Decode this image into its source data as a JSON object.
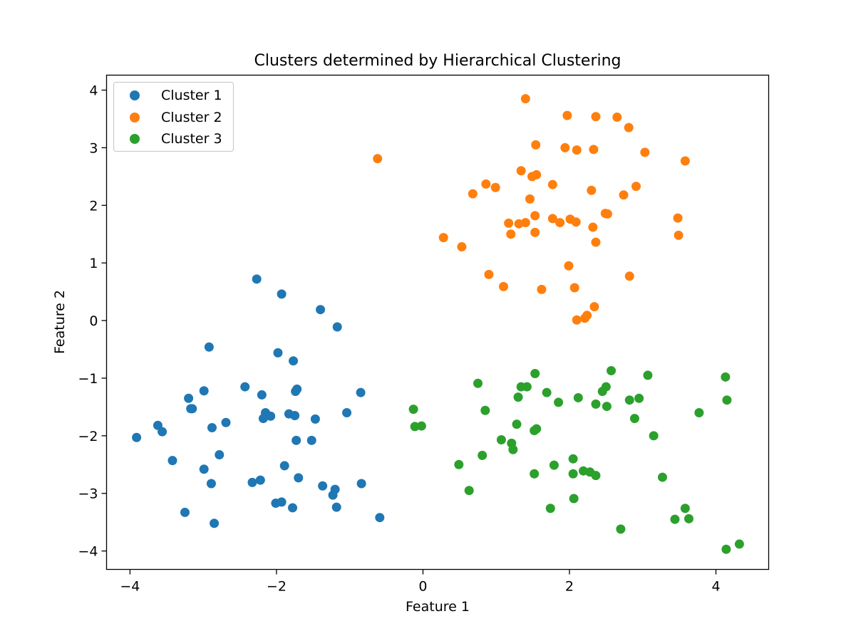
{
  "chart_data": {
    "type": "scatter",
    "title": "Clusters determined by Hierarchical Clustering",
    "xlabel": "Feature 1",
    "ylabel": "Feature 2",
    "xlim": [
      -4.32,
      4.72
    ],
    "ylim": [
      -4.32,
      4.26
    ],
    "xticks": [
      -4,
      -2,
      0,
      2,
      4
    ],
    "xtick_labels": [
      "−4",
      "−2",
      "0",
      "2",
      "4"
    ],
    "yticks": [
      -4,
      -3,
      -2,
      -1,
      0,
      1,
      2,
      3,
      4
    ],
    "ytick_labels": [
      "−4",
      "−3",
      "−2",
      "−1",
      "0",
      "1",
      "2",
      "3",
      "4"
    ],
    "grid": false,
    "legend_position": "top-left",
    "series": [
      {
        "name": "Cluster 1",
        "color": "#1f77b4",
        "points": [
          [
            -2.27,
            0.72
          ],
          [
            -1.93,
            0.46
          ],
          [
            -1.4,
            0.19
          ],
          [
            -1.17,
            -0.11
          ],
          [
            -2.92,
            -0.46
          ],
          [
            -1.98,
            -0.56
          ],
          [
            -1.77,
            -0.7
          ],
          [
            -2.43,
            -1.15
          ],
          [
            -3.2,
            -1.35
          ],
          [
            -2.99,
            -1.22
          ],
          [
            -2.2,
            -1.29
          ],
          [
            -1.72,
            -1.19
          ],
          [
            -1.74,
            -1.23
          ],
          [
            -0.85,
            -1.25
          ],
          [
            -3.15,
            -1.53
          ],
          [
            -3.17,
            -1.53
          ],
          [
            -2.15,
            -1.6
          ],
          [
            -2.08,
            -1.66
          ],
          [
            -1.83,
            -1.62
          ],
          [
            -1.75,
            -1.65
          ],
          [
            -2.18,
            -1.7
          ],
          [
            -1.47,
            -1.71
          ],
          [
            -1.04,
            -1.6
          ],
          [
            -2.69,
            -1.77
          ],
          [
            -2.88,
            -1.86
          ],
          [
            -3.62,
            -1.82
          ],
          [
            -3.56,
            -1.93
          ],
          [
            -3.91,
            -2.03
          ],
          [
            -1.73,
            -2.08
          ],
          [
            -1.52,
            -2.08
          ],
          [
            -3.42,
            -2.43
          ],
          [
            -2.78,
            -2.33
          ],
          [
            -2.99,
            -2.58
          ],
          [
            -1.89,
            -2.52
          ],
          [
            -1.7,
            -2.73
          ],
          [
            -2.22,
            -2.77
          ],
          [
            -2.33,
            -2.81
          ],
          [
            -2.89,
            -2.83
          ],
          [
            -1.37,
            -2.87
          ],
          [
            -1.2,
            -2.93
          ],
          [
            -1.23,
            -3.03
          ],
          [
            -0.84,
            -2.83
          ],
          [
            -2.01,
            -3.17
          ],
          [
            -1.93,
            -3.15
          ],
          [
            -1.78,
            -3.25
          ],
          [
            -1.18,
            -3.24
          ],
          [
            -3.25,
            -3.33
          ],
          [
            -2.85,
            -3.52
          ],
          [
            -0.59,
            -3.42
          ]
        ]
      },
      {
        "name": "Cluster 2",
        "color": "#ff7f0e",
        "points": [
          [
            1.4,
            3.85
          ],
          [
            1.97,
            3.56
          ],
          [
            2.36,
            3.54
          ],
          [
            2.65,
            3.53
          ],
          [
            2.81,
            3.35
          ],
          [
            1.54,
            3.05
          ],
          [
            1.94,
            3.0
          ],
          [
            2.1,
            2.96
          ],
          [
            2.33,
            2.97
          ],
          [
            3.03,
            2.92
          ],
          [
            3.58,
            2.77
          ],
          [
            -0.62,
            2.81
          ],
          [
            1.34,
            2.6
          ],
          [
            1.49,
            2.5
          ],
          [
            1.55,
            2.53
          ],
          [
            0.86,
            2.37
          ],
          [
            0.99,
            2.31
          ],
          [
            0.68,
            2.2
          ],
          [
            1.77,
            2.36
          ],
          [
            2.3,
            2.26
          ],
          [
            2.74,
            2.18
          ],
          [
            2.91,
            2.33
          ],
          [
            1.46,
            2.11
          ],
          [
            1.53,
            1.82
          ],
          [
            1.77,
            1.77
          ],
          [
            1.87,
            1.7
          ],
          [
            2.01,
            1.76
          ],
          [
            2.09,
            1.71
          ],
          [
            1.17,
            1.69
          ],
          [
            1.31,
            1.68
          ],
          [
            1.4,
            1.7
          ],
          [
            2.49,
            1.86
          ],
          [
            2.52,
            1.85
          ],
          [
            3.48,
            1.78
          ],
          [
            2.32,
            1.62
          ],
          [
            1.2,
            1.5
          ],
          [
            1.53,
            1.53
          ],
          [
            3.49,
            1.48
          ],
          [
            2.36,
            1.36
          ],
          [
            0.28,
            1.44
          ],
          [
            0.53,
            1.28
          ],
          [
            1.99,
            0.95
          ],
          [
            0.9,
            0.8
          ],
          [
            2.82,
            0.77
          ],
          [
            1.1,
            0.59
          ],
          [
            1.62,
            0.54
          ],
          [
            2.07,
            0.57
          ],
          [
            2.34,
            0.24
          ],
          [
            2.1,
            0.01
          ],
          [
            2.21,
            0.04
          ],
          [
            2.24,
            0.09
          ]
        ]
      },
      {
        "name": "Cluster 3",
        "color": "#2ca02c",
        "points": [
          [
            2.57,
            -0.87
          ],
          [
            1.53,
            -0.92
          ],
          [
            3.07,
            -0.95
          ],
          [
            4.13,
            -0.98
          ],
          [
            0.75,
            -1.09
          ],
          [
            1.34,
            -1.15
          ],
          [
            1.42,
            -1.15
          ],
          [
            2.5,
            -1.15
          ],
          [
            1.69,
            -1.25
          ],
          [
            2.45,
            -1.23
          ],
          [
            1.3,
            -1.33
          ],
          [
            2.12,
            -1.34
          ],
          [
            2.82,
            -1.38
          ],
          [
            2.95,
            -1.35
          ],
          [
            4.15,
            -1.38
          ],
          [
            1.85,
            -1.42
          ],
          [
            2.36,
            -1.45
          ],
          [
            2.51,
            -1.49
          ],
          [
            0.85,
            -1.56
          ],
          [
            3.77,
            -1.6
          ],
          [
            -0.13,
            -1.54
          ],
          [
            -0.11,
            -1.84
          ],
          [
            -0.02,
            -1.83
          ],
          [
            1.28,
            -1.8
          ],
          [
            1.55,
            -1.88
          ],
          [
            1.52,
            -1.91
          ],
          [
            2.89,
            -1.7
          ],
          [
            3.15,
            -2.0
          ],
          [
            1.07,
            -2.07
          ],
          [
            1.21,
            -2.13
          ],
          [
            1.23,
            -2.24
          ],
          [
            0.81,
            -2.34
          ],
          [
            0.49,
            -2.5
          ],
          [
            1.79,
            -2.51
          ],
          [
            2.05,
            -2.4
          ],
          [
            1.52,
            -2.66
          ],
          [
            2.05,
            -2.66
          ],
          [
            2.19,
            -2.61
          ],
          [
            2.28,
            -2.63
          ],
          [
            2.36,
            -2.69
          ],
          [
            3.27,
            -2.72
          ],
          [
            0.63,
            -2.95
          ],
          [
            2.06,
            -3.09
          ],
          [
            1.74,
            -3.26
          ],
          [
            3.58,
            -3.26
          ],
          [
            3.44,
            -3.45
          ],
          [
            3.63,
            -3.44
          ],
          [
            2.7,
            -3.62
          ],
          [
            4.14,
            -3.97
          ],
          [
            4.32,
            -3.88
          ]
        ]
      }
    ]
  }
}
